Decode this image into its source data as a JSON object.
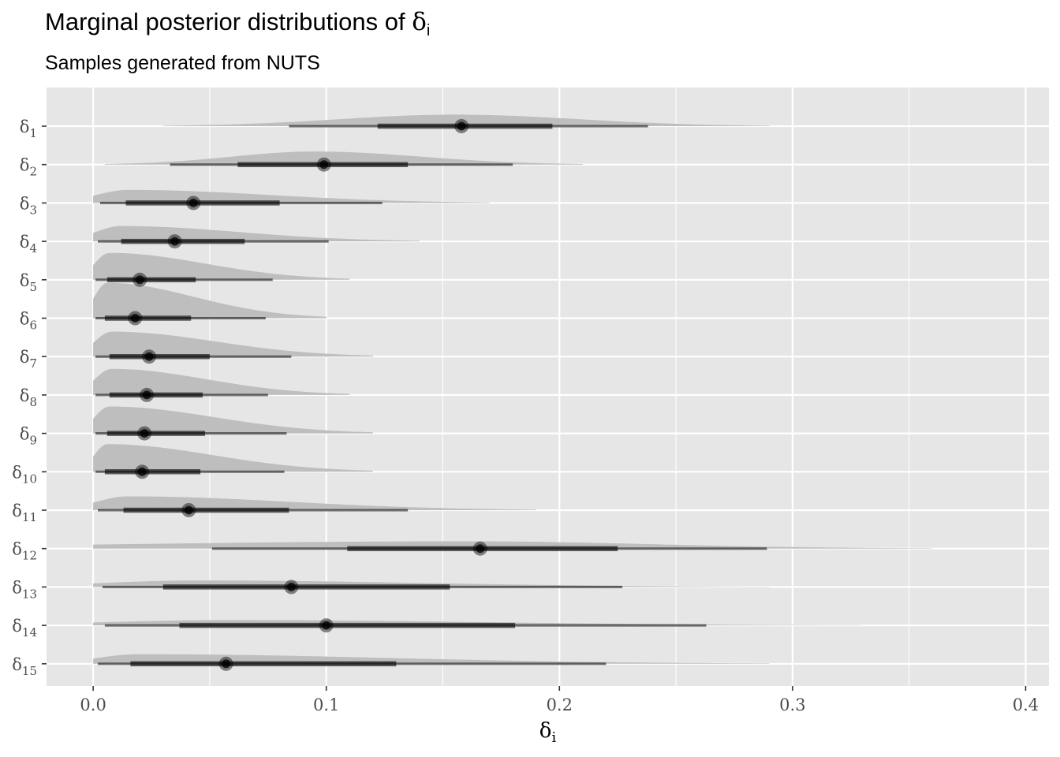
{
  "chart_data": {
    "type": "interval-density",
    "title": "Marginal posterior distributions of ",
    "title_symbol": "δ",
    "title_symbol_sub": "i",
    "subtitle": "Samples generated from NUTS",
    "xlabel_symbol": "δ",
    "xlabel_sub": "i",
    "xlim": [
      -0.02,
      0.41
    ],
    "xticks": [
      0.0,
      0.1,
      0.2,
      0.3,
      0.4
    ],
    "xtick_labels": [
      "0.0",
      "0.1",
      "0.2",
      "0.3",
      "0.4"
    ],
    "grid": true,
    "legend": "none",
    "colors": {
      "panel": "#e6e6e6",
      "grid": "#ffffff",
      "density": "#bebebe",
      "interval": "#000000",
      "axis_text": "#4d4d4d"
    },
    "series": [
      {
        "label_symbol": "δ",
        "label_sub": "1",
        "median": 0.158,
        "inner": [
          0.122,
          0.197
        ],
        "outer": [
          0.084,
          0.238
        ],
        "density": {
          "lo": 0.03,
          "mode": 0.155,
          "hi": 0.29,
          "height": 0.3
        }
      },
      {
        "label_symbol": "δ",
        "label_sub": "2",
        "median": 0.099,
        "inner": [
          0.062,
          0.135
        ],
        "outer": [
          0.033,
          0.18
        ],
        "density": {
          "lo": 0.005,
          "mode": 0.095,
          "hi": 0.21,
          "height": 0.34
        }
      },
      {
        "label_symbol": "δ",
        "label_sub": "3",
        "median": 0.043,
        "inner": [
          0.014,
          0.08
        ],
        "outer": [
          0.003,
          0.124
        ],
        "density": {
          "lo": 0.0,
          "mode": 0.015,
          "hi": 0.17,
          "height": 0.34
        }
      },
      {
        "label_symbol": "δ",
        "label_sub": "4",
        "median": 0.035,
        "inner": [
          0.012,
          0.065
        ],
        "outer": [
          0.002,
          0.101
        ],
        "density": {
          "lo": 0.0,
          "mode": 0.012,
          "hi": 0.14,
          "height": 0.4
        }
      },
      {
        "label_symbol": "δ",
        "label_sub": "5",
        "median": 0.02,
        "inner": [
          0.006,
          0.044
        ],
        "outer": [
          0.001,
          0.077
        ],
        "density": {
          "lo": 0.0,
          "mode": 0.007,
          "hi": 0.11,
          "height": 0.7
        }
      },
      {
        "label_symbol": "δ",
        "label_sub": "6",
        "median": 0.018,
        "inner": [
          0.005,
          0.042
        ],
        "outer": [
          0.001,
          0.074
        ],
        "density": {
          "lo": 0.0,
          "mode": 0.006,
          "hi": 0.1,
          "height": 0.92
        }
      },
      {
        "label_symbol": "δ",
        "label_sub": "7",
        "median": 0.024,
        "inner": [
          0.007,
          0.05
        ],
        "outer": [
          0.001,
          0.085
        ],
        "density": {
          "lo": 0.0,
          "mode": 0.008,
          "hi": 0.12,
          "height": 0.65
        }
      },
      {
        "label_symbol": "δ",
        "label_sub": "8",
        "median": 0.023,
        "inner": [
          0.007,
          0.047
        ],
        "outer": [
          0.001,
          0.075
        ],
        "density": {
          "lo": 0.0,
          "mode": 0.008,
          "hi": 0.11,
          "height": 0.68
        }
      },
      {
        "label_symbol": "δ",
        "label_sub": "9",
        "median": 0.022,
        "inner": [
          0.006,
          0.048
        ],
        "outer": [
          0.001,
          0.083
        ],
        "density": {
          "lo": 0.0,
          "mode": 0.007,
          "hi": 0.12,
          "height": 0.7
        }
      },
      {
        "label_symbol": "δ",
        "label_sub": "10",
        "median": 0.021,
        "inner": [
          0.005,
          0.046
        ],
        "outer": [
          0.001,
          0.082
        ],
        "density": {
          "lo": 0.0,
          "mode": 0.006,
          "hi": 0.12,
          "height": 0.72
        }
      },
      {
        "label_symbol": "δ",
        "label_sub": "11",
        "median": 0.041,
        "inner": [
          0.013,
          0.084
        ],
        "outer": [
          0.002,
          0.135
        ],
        "density": {
          "lo": 0.0,
          "mode": 0.015,
          "hi": 0.19,
          "height": 0.36
        }
      },
      {
        "label_symbol": "δ",
        "label_sub": "12",
        "median": 0.166,
        "inner": [
          0.109,
          0.225
        ],
        "outer": [
          0.051,
          0.289
        ],
        "density": {
          "lo": 0.0,
          "mode": 0.16,
          "hi": 0.36,
          "height": 0.19
        }
      },
      {
        "label_symbol": "δ",
        "label_sub": "13",
        "median": 0.085,
        "inner": [
          0.03,
          0.153
        ],
        "outer": [
          0.004,
          0.227
        ],
        "density": {
          "lo": 0.0,
          "mode": 0.045,
          "hi": 0.29,
          "height": 0.17
        }
      },
      {
        "label_symbol": "δ",
        "label_sub": "14",
        "median": 0.1,
        "inner": [
          0.037,
          0.181
        ],
        "outer": [
          0.005,
          0.263
        ],
        "density": {
          "lo": 0.0,
          "mode": 0.06,
          "hi": 0.33,
          "height": 0.14
        }
      },
      {
        "label_symbol": "δ",
        "label_sub": "15",
        "median": 0.057,
        "inner": [
          0.016,
          0.13
        ],
        "outer": [
          0.002,
          0.22
        ],
        "density": {
          "lo": 0.0,
          "mode": 0.02,
          "hi": 0.29,
          "height": 0.25
        }
      }
    ]
  }
}
